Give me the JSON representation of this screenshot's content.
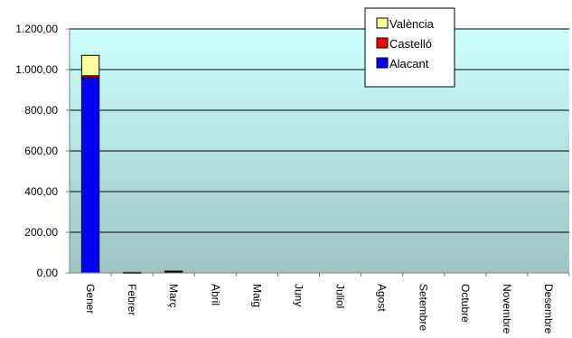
{
  "chart_data": {
    "type": "bar",
    "stacked": true,
    "categories": [
      "Gener",
      "Febrer",
      "Març",
      "Abril",
      "Maig",
      "Juny",
      "Juliol",
      "Agost",
      "Setembre",
      "Octubre",
      "Novembre",
      "Desembre"
    ],
    "series": [
      {
        "name": "Alacant",
        "color": "#0000ff",
        "values": [
          960,
          2,
          6,
          0,
          0,
          0,
          0,
          0,
          0,
          0,
          0,
          0
        ]
      },
      {
        "name": "Castelló",
        "color": "#ff0000",
        "values": [
          10,
          0,
          1,
          0,
          0,
          0,
          0,
          0,
          0,
          0,
          0,
          0
        ]
      },
      {
        "name": "València",
        "color": "#ffff99",
        "values": [
          100,
          1,
          2,
          0,
          0,
          0,
          0,
          0,
          0,
          0,
          0,
          0
        ]
      }
    ],
    "ylim": [
      0,
      1200
    ],
    "yticks": [
      "0,00",
      "200,00",
      "400,00",
      "600,00",
      "800,00",
      "1.000,00",
      "1.200,00"
    ],
    "grid": true,
    "legend_position": "top-right",
    "legend_order": [
      "València",
      "Castelló",
      "Alacant"
    ],
    "plot_background": [
      "#ccffff",
      "#9ec4c4"
    ]
  }
}
